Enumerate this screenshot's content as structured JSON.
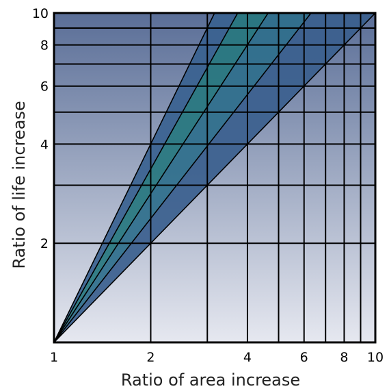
{
  "chart_data": {
    "type": "line",
    "title": "",
    "xlabel": "Ratio of area increase",
    "ylabel": "Ratio of life increase",
    "x_scale": "log",
    "y_scale": "log",
    "xlim": [
      1,
      10
    ],
    "ylim": [
      1,
      10
    ],
    "x_ticks": [
      1,
      2,
      4,
      6,
      8,
      10
    ],
    "x_tick_labels": [
      "1",
      "2",
      "4",
      "6",
      "8",
      "10"
    ],
    "y_ticks": [
      2,
      4,
      6,
      8,
      10
    ],
    "y_tick_labels": [
      "2",
      "4",
      "6",
      "8",
      "10"
    ],
    "x_gridlines": [
      2,
      3,
      4,
      5,
      6,
      7,
      8,
      9
    ],
    "y_gridlines": [
      2,
      3,
      4,
      5,
      6,
      7,
      8,
      9
    ],
    "grid": true,
    "series": [
      {
        "exponent": 1.0,
        "x": [
          1,
          10
        ],
        "y": [
          1,
          10
        ]
      },
      {
        "exponent": 1.25,
        "x": [
          1,
          6.31
        ],
        "y": [
          1,
          10
        ]
      },
      {
        "exponent": 1.5,
        "x": [
          1,
          4.64
        ],
        "y": [
          1,
          10
        ]
      },
      {
        "exponent": 1.75,
        "x": [
          1,
          3.73
        ],
        "y": [
          1,
          10
        ]
      },
      {
        "exponent": 2.0,
        "x": [
          1,
          3.16
        ],
        "y": [
          1,
          10
        ]
      }
    ],
    "bands": [
      {
        "between_exponents": [
          1.0,
          1.25
        ],
        "fill": "#3b5f8e"
      },
      {
        "between_exponents": [
          1.25,
          1.5
        ],
        "fill": "#2f6f8c"
      },
      {
        "between_exponents": [
          1.5,
          1.75
        ],
        "fill": "#27777f"
      },
      {
        "between_exponents": [
          1.75,
          2.0
        ],
        "fill": "#3a6290"
      }
    ],
    "colors": {
      "background_top": "#5a6e97",
      "background_bottom": "#e6e8f0",
      "grid": "#000000",
      "band_line": "#000000"
    }
  }
}
